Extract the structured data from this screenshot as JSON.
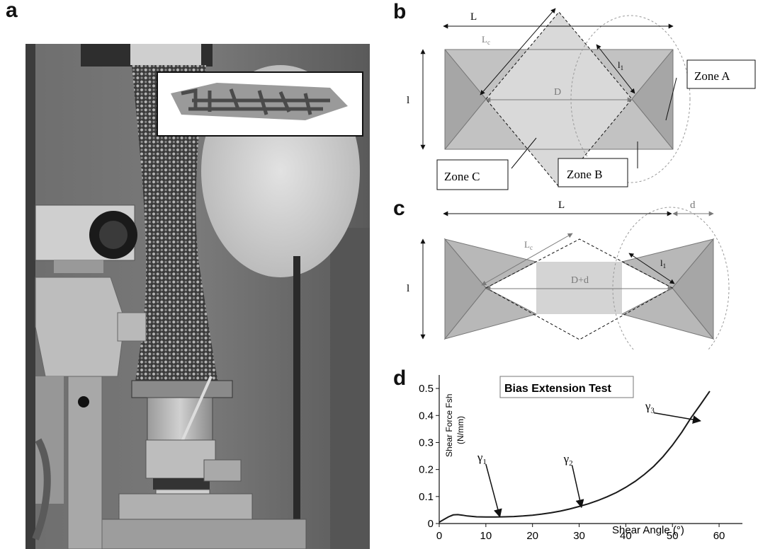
{
  "panels": {
    "a": "a",
    "b": "b",
    "c": "c",
    "d": "d"
  },
  "diagram_b": {
    "L": "L",
    "Lc": "L",
    "Lc_sub": "c",
    "l": "l",
    "l1": "l",
    "l1_sub": "1",
    "D": "D",
    "zone_a": "Zone A",
    "zone_b": "Zone B",
    "zone_c": "Zone C"
  },
  "diagram_c": {
    "L": "L",
    "d": "d",
    "Lc": "L",
    "Lc_sub": "c",
    "l": "l",
    "l1": "l",
    "l1_sub": "1",
    "D": "D+d"
  },
  "colors": {
    "fabric_dark": "#a6a6a6",
    "fabric_light": "#d4d4d4",
    "arrow_gray": "#7a7a7a",
    "curve": "#1a1a1a"
  },
  "chart_data": {
    "type": "line",
    "title": "Bias Extension Test",
    "ylabel_line1": "Shear Force Fsh",
    "ylabel_line2": "(N/mm)",
    "xlabel": "Shear Angle (°)",
    "xlim": [
      0,
      65
    ],
    "ylim": [
      0,
      0.55
    ],
    "xticks": [
      0,
      10,
      20,
      30,
      40,
      50,
      60
    ],
    "yticks": [
      0,
      0.1,
      0.2,
      0.3,
      0.4,
      0.5
    ],
    "ytick_labels": [
      "0",
      "0.1",
      "0.2",
      "0.3",
      "0.4",
      "0.5"
    ],
    "series": [
      {
        "x": [
          0,
          1,
          2,
          3,
          4,
          5,
          6,
          8,
          10,
          12,
          14,
          16,
          18,
          20,
          22,
          24,
          26,
          28,
          30,
          32,
          34,
          36,
          38,
          40,
          42,
          44,
          46,
          48,
          50,
          52,
          54,
          56,
          58
        ],
        "y": [
          0.005,
          0.015,
          0.025,
          0.032,
          0.033,
          0.031,
          0.028,
          0.025,
          0.024,
          0.024,
          0.025,
          0.026,
          0.028,
          0.031,
          0.035,
          0.04,
          0.046,
          0.054,
          0.063,
          0.073,
          0.085,
          0.099,
          0.115,
          0.134,
          0.156,
          0.182,
          0.212,
          0.248,
          0.29,
          0.338,
          0.392,
          0.44,
          0.49
        ]
      }
    ],
    "annotations": [
      {
        "text": "γ",
        "sub": "1",
        "at_x": 13,
        "at_y": 0.025,
        "from_x": 10,
        "from_y": 0.22
      },
      {
        "text": "γ",
        "sub": "2",
        "at_x": 30.5,
        "at_y": 0.06,
        "from_x": 28.5,
        "from_y": 0.215
      },
      {
        "text": "γ",
        "sub": "3",
        "at_x": 56,
        "at_y": 0.38,
        "from_x": 46,
        "from_y": 0.41
      }
    ]
  }
}
